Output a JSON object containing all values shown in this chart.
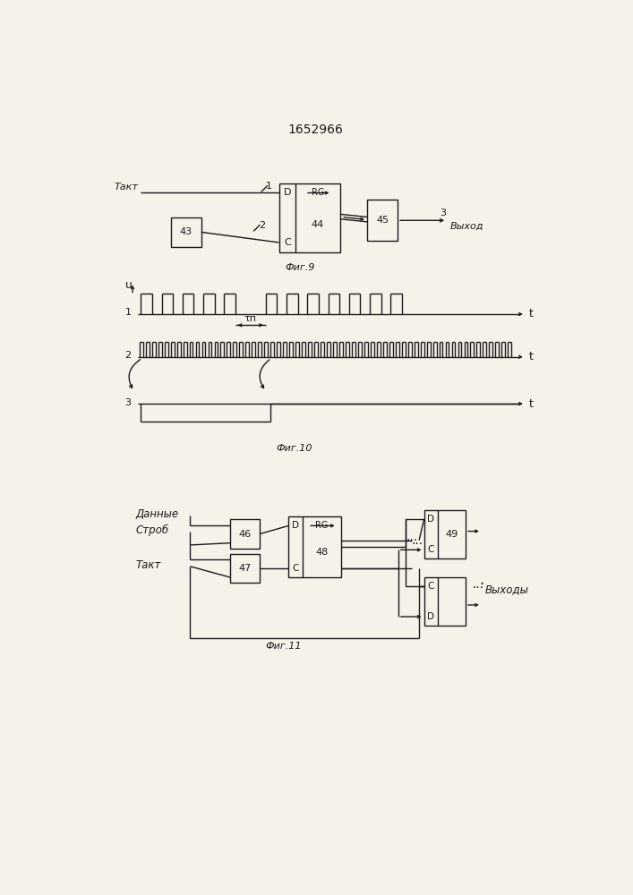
{
  "title": "1652966",
  "bg_color": "#f5f2ea",
  "line_color": "#1a1a1a",
  "fig9": {
    "caption": "Фиг.9",
    "takt_label": "Такт",
    "vyhod_label": "Выход",
    "box43": "43",
    "box44": "44",
    "box45": "45",
    "label_D": "D",
    "label_RG": "RG",
    "label_C": "C",
    "label_1": "1",
    "label_2": "2",
    "label_3": "3"
  },
  "fig10": {
    "caption": "Фиг.10",
    "u_label": "u",
    "t_label": "t",
    "tau_label": "τп",
    "row1_label": "1",
    "row2_label": "2",
    "row3_label": "3"
  },
  "fig11": {
    "caption": "Фиг.11",
    "dannye_label": "Данные",
    "strob_label": "Строб",
    "takt_label": "Такт",
    "vyhody_label": "Выходы",
    "box46": "46",
    "box47": "47",
    "box48": "48",
    "box49": "49",
    "label_D": "D",
    "label_RG": "RG",
    "label_C": "C"
  }
}
